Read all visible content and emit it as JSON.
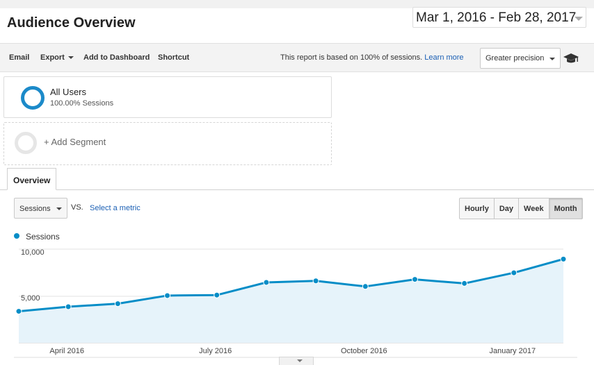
{
  "header": {
    "title": "Audience Overview",
    "date_range": "Mar 1, 2016 - Feb 28, 2017"
  },
  "toolbar": {
    "email": "Email",
    "export": "Export",
    "add_to_dashboard": "Add to Dashboard",
    "shortcut": "Shortcut",
    "report_note": "This report is based on 100% of sessions.",
    "learn_more": "Learn more",
    "precision": "Greater precision",
    "icon": "graduation-cap-icon"
  },
  "segments": {
    "current": {
      "name": "All Users",
      "share": "100.00% Sessions"
    },
    "add_label": "+ Add Segment"
  },
  "tabs": {
    "overview": "Overview"
  },
  "controls": {
    "metric": "Sessions",
    "vs": "VS.",
    "select_metric": "Select a metric",
    "granularity": [
      {
        "label": "Hourly",
        "active": false
      },
      {
        "label": "Day",
        "active": false
      },
      {
        "label": "Week",
        "active": false
      },
      {
        "label": "Month",
        "active": true
      }
    ]
  },
  "colors": {
    "series": "#058dc7",
    "area_fill": "#e6f3fa",
    "segment_ring": "#1c8ac9",
    "link": "#1a5fb4"
  },
  "chart_data": {
    "type": "area",
    "x": [
      "2016-03",
      "2016-04",
      "2016-05",
      "2016-06",
      "2016-07",
      "2016-08",
      "2016-09",
      "2016-10",
      "2016-11",
      "2016-12",
      "2017-01",
      "2017-02"
    ],
    "series": [
      {
        "name": "Sessions",
        "values": [
          4550,
          5000,
          5300,
          6100,
          6150,
          7400,
          7550,
          7000,
          7700,
          7300,
          8350,
          9700
        ]
      }
    ],
    "ylim": [
      0,
      10000
    ],
    "y_ticks": [
      "5,000",
      "10,000"
    ],
    "y_tick_values": [
      5000,
      10000
    ],
    "x_tick_labels": [
      "April 2016",
      "July 2016",
      "October 2016",
      "January 2017"
    ],
    "x_tick_positions": [
      "2016-04",
      "2016-07",
      "2016-10",
      "2017-01"
    ],
    "grid": true,
    "legend": "top-left"
  }
}
